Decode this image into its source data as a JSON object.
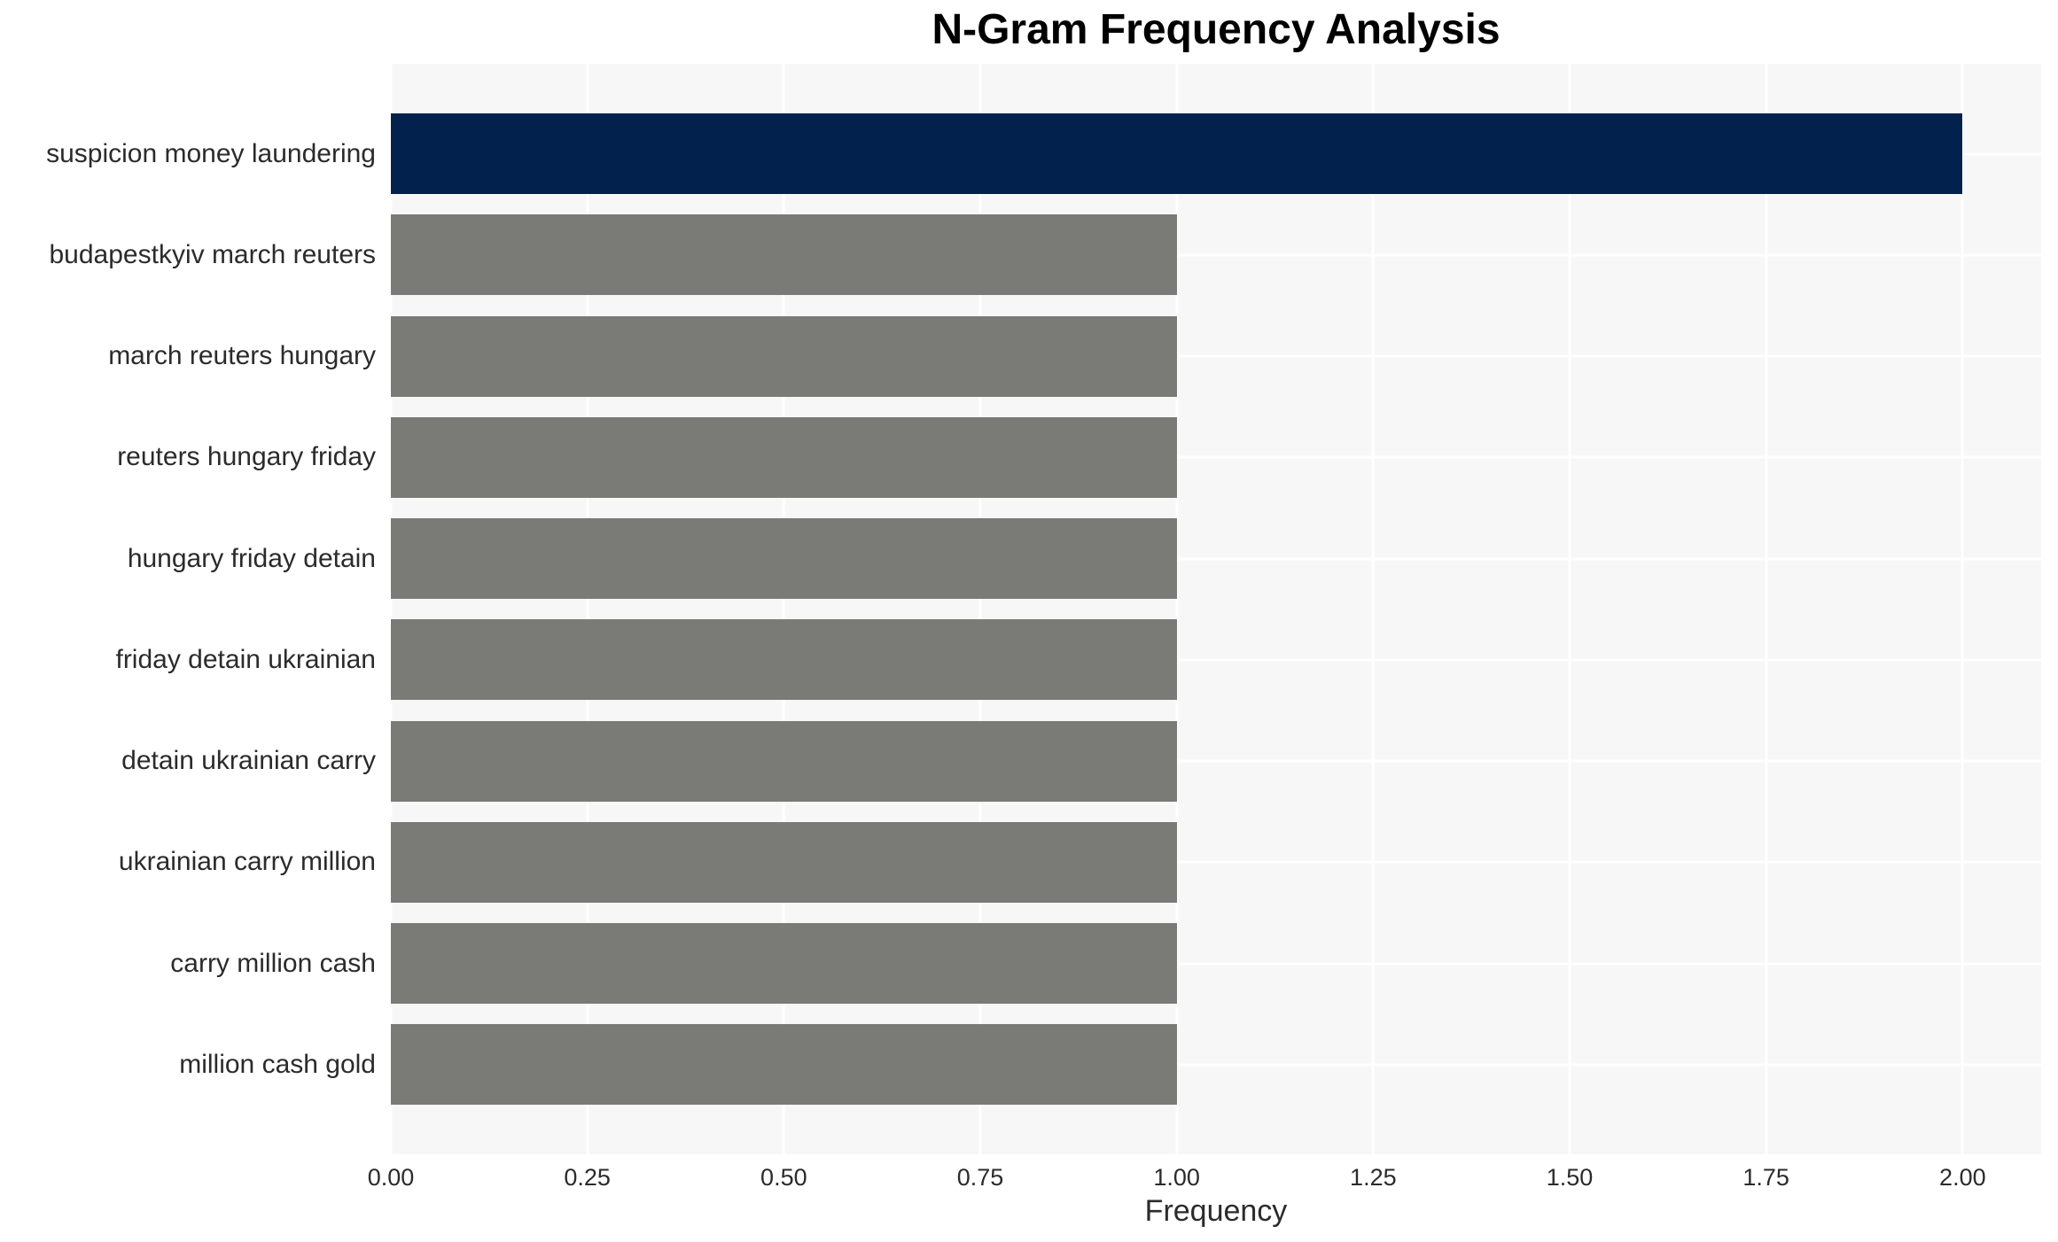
{
  "chart_data": {
    "type": "bar",
    "orientation": "horizontal",
    "title": "N-Gram Frequency Analysis",
    "xlabel": "Frequency",
    "ylabel": "",
    "categories": [
      "suspicion money laundering",
      "budapestkyiv march reuters",
      "march reuters hungary",
      "reuters hungary friday",
      "hungary friday detain",
      "friday detain ukrainian",
      "detain ukrainian carry",
      "ukrainian carry million",
      "carry million cash",
      "million cash gold"
    ],
    "values": [
      2,
      1,
      1,
      1,
      1,
      1,
      1,
      1,
      1,
      1
    ],
    "bar_colors": [
      "#02214d",
      "#7a7a77",
      "#7a7a77",
      "#7a7a77",
      "#7a7a77",
      "#7a7a77",
      "#7a7a77",
      "#7a7a77",
      "#7a7a77",
      "#7a7a77"
    ],
    "xlim": [
      0,
      2.1
    ],
    "xticks": [
      0.0,
      0.25,
      0.5,
      0.75,
      1.0,
      1.25,
      1.5,
      1.75,
      2.0
    ],
    "xtick_format_decimals": 2,
    "grid": "on",
    "legend": "none",
    "colors": {
      "highlight_bar": "#02214d",
      "default_bar": "#7a7a77",
      "plot_background": "#f7f7f7",
      "gridline": "#ffffff",
      "tick_text": "#2b2b2b",
      "title_text": "#000000"
    }
  }
}
